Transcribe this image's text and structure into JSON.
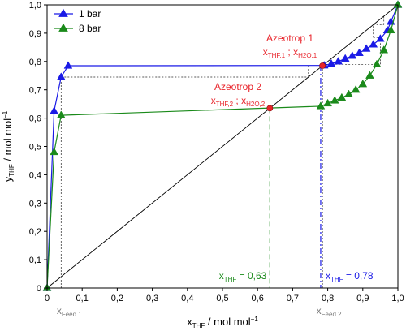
{
  "chart_data": {
    "type": "line",
    "xlabel": {
      "main": "x",
      "sub": "THF",
      "rest": " / mol mol",
      "sup": "−1"
    },
    "ylabel": {
      "main": "y",
      "sub": "THF",
      "rest": " / mol mol",
      "sup": "−1"
    },
    "xlim": [
      0,
      1
    ],
    "ylim": [
      0,
      1
    ],
    "x_ticks": [
      "0",
      "0,1",
      "0,2",
      "0,3",
      "0,4",
      "0,5",
      "0,6",
      "0,7",
      "0,8",
      "0,9",
      "1,0"
    ],
    "y_ticks": [
      "0",
      "0,1",
      "0,2",
      "0,3",
      "0,4",
      "0,5",
      "0,6",
      "0,7",
      "0,8",
      "0,9",
      "1,0"
    ],
    "grid": false,
    "legend_position": "top-left",
    "series": [
      {
        "name": "1 bar",
        "color": "#1a1ae6",
        "marker": "triangle",
        "x": [
          0,
          0.02,
          0.04,
          0.06,
          0.79,
          0.81,
          0.83,
          0.85,
          0.87,
          0.89,
          0.91,
          0.93,
          0.95,
          0.97,
          0.98,
          1.0
        ],
        "y": [
          0,
          0.625,
          0.745,
          0.785,
          0.786,
          0.792,
          0.8,
          0.81,
          0.82,
          0.83,
          0.845,
          0.86,
          0.88,
          0.91,
          0.94,
          1.0
        ]
      },
      {
        "name": "8 bar",
        "color": "#1a8a1a",
        "marker": "triangle",
        "x": [
          0,
          0.02,
          0.04,
          0.78,
          0.8,
          0.82,
          0.84,
          0.86,
          0.88,
          0.9,
          0.92,
          0.94,
          0.96,
          0.98,
          1.0
        ],
        "y": [
          0,
          0.48,
          0.61,
          0.642,
          0.652,
          0.662,
          0.672,
          0.684,
          0.7,
          0.72,
          0.75,
          0.79,
          0.84,
          0.91,
          1.0
        ]
      }
    ],
    "diagonal": {
      "x": [
        0,
        1
      ],
      "y": [
        0,
        1
      ],
      "color": "#000000"
    },
    "azeotropes": [
      {
        "title": "Azeotrop 1",
        "label_main_1": "x",
        "label_sub_1": "THF,1",
        "label_sep": " ; ",
        "label_main_2": "x",
        "label_sub_2": "H2O,1",
        "x": 0.785,
        "y": 0.785,
        "color": "#e8232a"
      },
      {
        "title": "Azeotrop 2",
        "label_main_1": "x",
        "label_sub_1": "THF,2",
        "label_sep": " ; ",
        "label_main_2": "x",
        "label_sub_2": "H2O,2",
        "x": 0.635,
        "y": 0.635,
        "color": "#e8232a"
      }
    ],
    "vertical_markers": [
      {
        "x": 0.635,
        "color": "#1a8a1a",
        "style": "dashed",
        "label_main": "x",
        "label_sub": "THF",
        "label_rest": " = 0,63"
      },
      {
        "x": 0.78,
        "color": "#1a1ae6",
        "style": "dashdot",
        "label_main": "x",
        "label_sub": "THF",
        "label_rest": " = 0,78"
      }
    ],
    "feed_labels": [
      {
        "main": "x",
        "sub": "Feed 1",
        "x": 0.04
      },
      {
        "main": "x",
        "sub": "Feed 2",
        "x": 0.785
      }
    ]
  }
}
